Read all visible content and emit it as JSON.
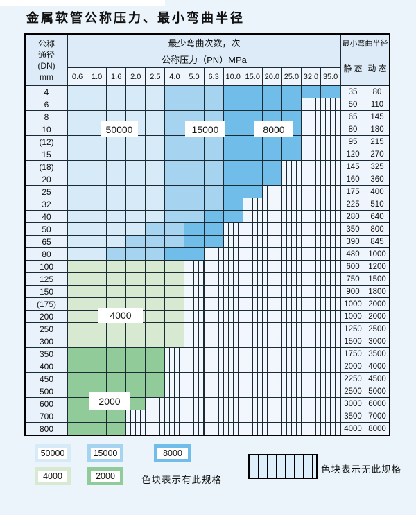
{
  "title": "金属软管公称压力、最小弯曲半径",
  "table": {
    "corner": [
      "公称",
      "通径",
      "(DN)",
      "mm"
    ],
    "bend_header": "最少弯曲次数，次",
    "pressure_header": "公称压力（PN）MPa",
    "pressures": [
      "0.6",
      "1.0",
      "1.6",
      "2.0",
      "2.5",
      "4.0",
      "5.0",
      "6.3",
      "10.0",
      "15.0",
      "20.0",
      "25.0",
      "32.0",
      "35.0"
    ],
    "radius_header": "最小弯曲半径",
    "static_header": "静 态",
    "dynamic_header": "动 态",
    "rows": [
      {
        "dn": "4",
        "st": "35",
        "dy": "80",
        "bands": [
          [
            "b50",
            5
          ],
          [
            "b15",
            3
          ],
          [
            "b80",
            6
          ]
        ]
      },
      {
        "dn": "6",
        "st": "50",
        "dy": "110",
        "bands": [
          [
            "b50",
            5
          ],
          [
            "b15",
            3
          ],
          [
            "b80",
            4
          ],
          [
            "h",
            2
          ]
        ]
      },
      {
        "dn": "8",
        "st": "65",
        "dy": "145",
        "bands": [
          [
            "b50",
            5
          ],
          [
            "b15",
            3
          ],
          [
            "b80",
            4
          ],
          [
            "h",
            2
          ]
        ]
      },
      {
        "dn": "10",
        "st": "80",
        "dy": "180",
        "bands": [
          [
            "b50",
            5
          ],
          [
            "b15",
            3
          ],
          [
            "b80",
            4
          ],
          [
            "h",
            2
          ]
        ]
      },
      {
        "dn": "(12)",
        "st": "95",
        "dy": "215",
        "bands": [
          [
            "b50",
            5
          ],
          [
            "b15",
            3
          ],
          [
            "b80",
            4
          ],
          [
            "h",
            2
          ]
        ]
      },
      {
        "dn": "15",
        "st": "120",
        "dy": "270",
        "bands": [
          [
            "b50",
            5
          ],
          [
            "b15",
            3
          ],
          [
            "b80",
            4
          ],
          [
            "h",
            2
          ]
        ]
      },
      {
        "dn": "(18)",
        "st": "145",
        "dy": "325",
        "bands": [
          [
            "b50",
            5
          ],
          [
            "b15",
            3
          ],
          [
            "b80",
            3
          ],
          [
            "h",
            3
          ]
        ]
      },
      {
        "dn": "20",
        "st": "160",
        "dy": "360",
        "bands": [
          [
            "b50",
            5
          ],
          [
            "b15",
            3
          ],
          [
            "b80",
            3
          ],
          [
            "h",
            3
          ]
        ]
      },
      {
        "dn": "25",
        "st": "175",
        "dy": "400",
        "bands": [
          [
            "b50",
            5
          ],
          [
            "b15",
            3
          ],
          [
            "b80",
            2
          ],
          [
            "h",
            4
          ]
        ]
      },
      {
        "dn": "32",
        "st": "225",
        "dy": "510",
        "bands": [
          [
            "b50",
            5
          ],
          [
            "b15",
            3
          ],
          [
            "b80",
            1
          ],
          [
            "h",
            5
          ]
        ]
      },
      {
        "dn": "40",
        "st": "280",
        "dy": "640",
        "bands": [
          [
            "b50",
            5
          ],
          [
            "b15",
            2
          ],
          [
            "b80",
            2
          ],
          [
            "h",
            5
          ]
        ]
      },
      {
        "dn": "50",
        "st": "350",
        "dy": "800",
        "bands": [
          [
            "b50",
            4
          ],
          [
            "b15",
            2
          ],
          [
            "b80",
            2
          ],
          [
            "h",
            6
          ]
        ]
      },
      {
        "dn": "65",
        "st": "390",
        "dy": "845",
        "bands": [
          [
            "b50",
            3
          ],
          [
            "b15",
            3
          ],
          [
            "b80",
            2
          ],
          [
            "h",
            6
          ]
        ]
      },
      {
        "dn": "80",
        "st": "480",
        "dy": "1000",
        "bands": [
          [
            "b50",
            2
          ],
          [
            "b15",
            3
          ],
          [
            "b80",
            2
          ],
          [
            "h",
            7
          ]
        ]
      },
      {
        "dn": "100",
        "st": "600",
        "dy": "1200",
        "bands": [
          [
            "g40",
            6
          ],
          [
            "h",
            8
          ]
        ]
      },
      {
        "dn": "125",
        "st": "750",
        "dy": "1500",
        "bands": [
          [
            "g40",
            6
          ],
          [
            "h",
            8
          ]
        ]
      },
      {
        "dn": "150",
        "st": "900",
        "dy": "1800",
        "bands": [
          [
            "g40",
            6
          ],
          [
            "h",
            8
          ]
        ]
      },
      {
        "dn": "(175)",
        "st": "1000",
        "dy": "2000",
        "bands": [
          [
            "g40",
            6
          ],
          [
            "h",
            8
          ]
        ]
      },
      {
        "dn": "200",
        "st": "1000",
        "dy": "2000",
        "bands": [
          [
            "g40",
            6
          ],
          [
            "h",
            8
          ]
        ]
      },
      {
        "dn": "250",
        "st": "1250",
        "dy": "2500",
        "bands": [
          [
            "g40",
            6
          ],
          [
            "h",
            8
          ]
        ]
      },
      {
        "dn": "300",
        "st": "1500",
        "dy": "3000",
        "bands": [
          [
            "g40",
            6
          ],
          [
            "h",
            8
          ]
        ]
      },
      {
        "dn": "350",
        "st": "1750",
        "dy": "3500",
        "bands": [
          [
            "g20",
            5
          ],
          [
            "h",
            9
          ]
        ]
      },
      {
        "dn": "400",
        "st": "2000",
        "dy": "4000",
        "bands": [
          [
            "g20",
            5
          ],
          [
            "h",
            9
          ]
        ]
      },
      {
        "dn": "450",
        "st": "2250",
        "dy": "4500",
        "bands": [
          [
            "g20",
            5
          ],
          [
            "h",
            9
          ]
        ]
      },
      {
        "dn": "500",
        "st": "2500",
        "dy": "5000",
        "bands": [
          [
            "g20",
            5
          ],
          [
            "h",
            9
          ]
        ]
      },
      {
        "dn": "600",
        "st": "3000",
        "dy": "6000",
        "bands": [
          [
            "g20",
            4
          ],
          [
            "h",
            10
          ]
        ]
      },
      {
        "dn": "700",
        "st": "3500",
        "dy": "7000",
        "bands": [
          [
            "g20",
            3
          ],
          [
            "h",
            11
          ]
        ]
      },
      {
        "dn": "800",
        "st": "4000",
        "dy": "8000",
        "bands": [
          [
            "g20",
            3
          ],
          [
            "h",
            11
          ]
        ]
      }
    ]
  },
  "region_labels": {
    "r50000": "50000",
    "r15000": "15000",
    "r8000": "8000",
    "r4000": "4000",
    "r2000": "2000"
  },
  "legend": {
    "items": [
      {
        "label": "50000",
        "color_key": "blue_50000"
      },
      {
        "label": "15000",
        "color_key": "blue_15000"
      },
      {
        "label": "8000",
        "color_key": "blue_8000"
      },
      {
        "label": "4000",
        "color_key": "green_4000"
      },
      {
        "label": "2000",
        "color_key": "green_2000"
      }
    ],
    "has_spec_text": "色块表示有此规格",
    "no_spec_text": "色块表示无此规格"
  },
  "colors": {
    "page_bg": "#eaf4fa",
    "grid_line": "#1c2b33",
    "header_bg": "#dcebf7",
    "label_bg": "#e9f2fb",
    "value_bg": "#eef5fc",
    "blue_50000": "#d7eaf8",
    "blue_15000": "#a6d4f0",
    "blue_8000": "#6fbde8",
    "green_4000": "#d8e9d2",
    "green_2000": "#92cb9a",
    "hatch_bg": "#f1f7fd",
    "hatch_legend": "#ddeffa"
  }
}
